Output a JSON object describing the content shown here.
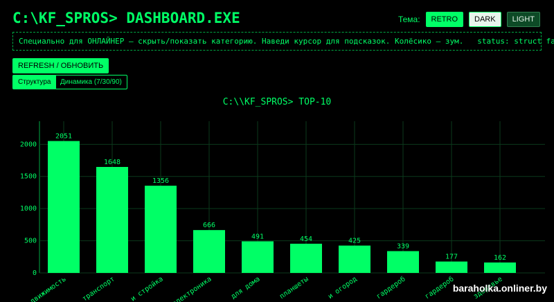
{
  "header": {
    "title": "C:\\KF_SPROS> DASHBOARD.EXE",
    "theme_label": "Тема:",
    "theme_buttons": [
      "RETRO",
      "DARK",
      "LIGHT"
    ]
  },
  "info_bar": "Специально для ОНЛАЙНЕР — скрыть/показать категорию. Наведи курсор для подсказок. Колёсико — зум.   status: struct fallback",
  "refresh_button": "REFRESH / ОБНОВИТЬ",
  "tabs": [
    "Структура",
    "Динамика (7/30/90)"
  ],
  "watermark": "baraholka.onliner.by",
  "chart_data": {
    "type": "bar",
    "title": "C:\\\\KF_SPROS> TOP-10",
    "categories": [
      "движимость",
      "транспорт",
      "и стройка",
      "электроника",
      "для дома",
      "планшеты",
      "и огород",
      "гардероб",
      "гардероб",
      "здоровье"
    ],
    "values": [
      2051,
      1648,
      1356,
      666,
      491,
      454,
      425,
      339,
      177,
      162
    ],
    "color": "#00ff66",
    "ylim": [
      0,
      2359
    ],
    "yticks": [
      0,
      500,
      1000,
      1500,
      2000
    ],
    "grid": true
  }
}
